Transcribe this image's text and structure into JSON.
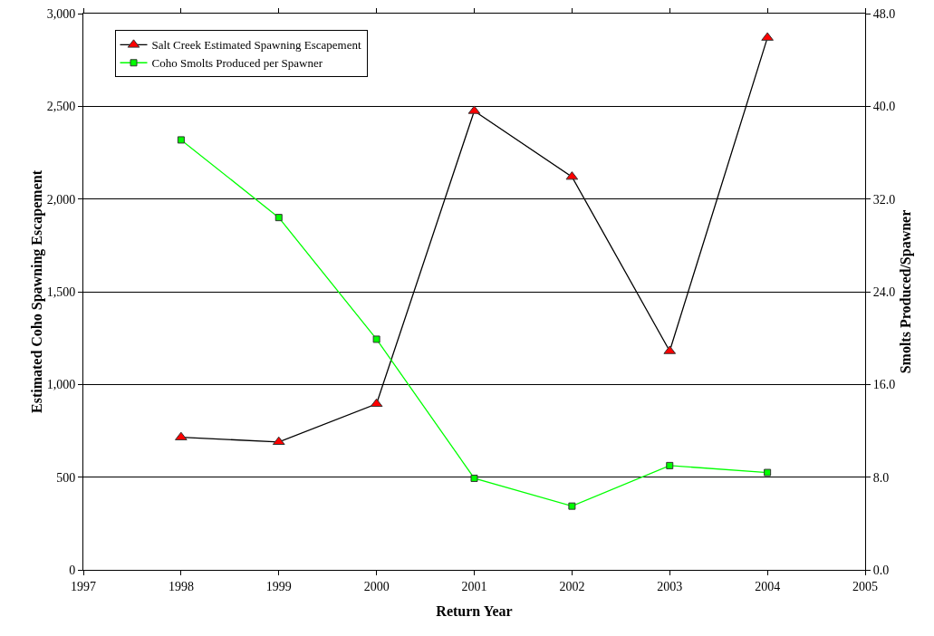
{
  "chart_data": {
    "type": "line",
    "xlabel": "Return Year",
    "ylabel": "Estimated Coho Spawning Escapement",
    "y2label": "Smolts Produced/Spawner",
    "x": [
      1998,
      1999,
      2000,
      2001,
      2002,
      2003,
      2004
    ],
    "series": [
      {
        "name": "Salt Creek Estimated Spawning Escapement",
        "color": "#000000",
        "colors": [
          "#ff0000",
          "#ff0000",
          "#ff0000",
          "#ff0000",
          "#ff0000",
          "#ff0000",
          "#ff0000"
        ],
        "marker": "triangle",
        "values": [
          715,
          690,
          895,
          2475,
          2120,
          1180,
          2870
        ]
      },
      {
        "name": "Coho Smolts Produced per Spawner",
        "color": "#00ff00",
        "marker": "square",
        "axis": "y2",
        "values": [
          37.1,
          30.4,
          19.9,
          7.9,
          5.5,
          9.0,
          8.4
        ]
      }
    ],
    "xlim": [
      1997,
      2005
    ],
    "xticks": [
      1997,
      1998,
      1999,
      2000,
      2001,
      2002,
      2003,
      2004,
      2005
    ],
    "ylim": [
      0,
      3000
    ],
    "yticks": [
      0,
      500,
      {
        "value": 1000,
        "label": "1,000"
      },
      {
        "value": 1500,
        "label": "1,500"
      },
      {
        "value": 2000,
        "label": "2,000"
      },
      {
        "value": 2500,
        "label": "2,500"
      },
      {
        "value": 3000,
        "label": "3,000"
      }
    ],
    "y2lim": [
      0,
      48
    ],
    "y2ticks": [
      {
        "value": 0,
        "label": "0.0"
      },
      {
        "value": 8,
        "label": "8.0"
      },
      {
        "value": 16,
        "label": "16.0"
      },
      {
        "value": 24,
        "label": "24.0"
      },
      {
        "value": 32,
        "label": "32.0"
      },
      {
        "value": 40,
        "label": "40.0"
      },
      {
        "value": 48,
        "label": "48.0"
      }
    ],
    "grid": "y",
    "legend": "top left",
    "line_style": "solid"
  }
}
